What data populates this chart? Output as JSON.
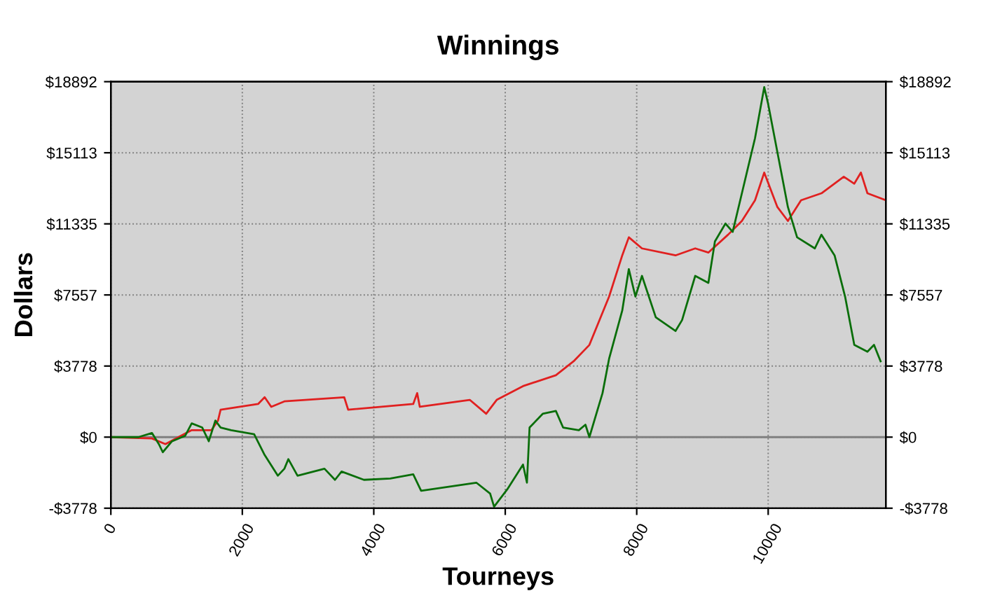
{
  "chart_data": {
    "type": "line",
    "title": "Winnings",
    "xlabel": "Tourneys",
    "ylabel": "Dollars",
    "xlim": [
      0,
      11790
    ],
    "xticks": [
      0,
      2000,
      4000,
      6000,
      8000,
      10000
    ],
    "ylim": [
      -3778,
      18892
    ],
    "yticks": [
      {
        "value": -3778,
        "label": "-$3778"
      },
      {
        "value": 0,
        "label": "$0"
      },
      {
        "value": 3778,
        "label": "$3778"
      },
      {
        "value": 7557,
        "label": "$7557"
      },
      {
        "value": 11335,
        "label": "$11335"
      },
      {
        "value": 15113,
        "label": "$15113"
      },
      {
        "value": 18892,
        "label": "$18892"
      }
    ],
    "y2lim": [
      -3778,
      18892
    ],
    "y2ticks": [
      {
        "value": -3778,
        "label": "-$3778"
      },
      {
        "value": 0,
        "label": "$0"
      },
      {
        "value": 3778,
        "label": "$3778"
      },
      {
        "value": 7557,
        "label": "$7557"
      },
      {
        "value": 11335,
        "label": "$11335"
      },
      {
        "value": 15113,
        "label": "$15113"
      },
      {
        "value": 18892,
        "label": "$18892"
      }
    ],
    "grid": true,
    "line_style": "solid",
    "ref_lines": [
      {
        "axis": "y",
        "value": 0,
        "color": "#808080"
      }
    ],
    "series": [
      {
        "color": "#e02020",
        "x": [
          0,
          625,
          830,
          1230,
          1530,
          1630,
          1670,
          2240,
          2340,
          2440,
          2640,
          3550,
          3610,
          4600,
          4660,
          4700,
          5460,
          5710,
          5870,
          6270,
          6770,
          7040,
          7280,
          7580,
          7780,
          7880,
          8080,
          8590,
          8890,
          9090,
          9390,
          9600,
          9800,
          9940,
          10140,
          10300,
          10500,
          10810,
          11150,
          11310,
          11410,
          11510,
          11790
        ],
        "values": [
          0,
          -70,
          -370,
          370,
          370,
          880,
          1460,
          1760,
          2120,
          1610,
          1900,
          2120,
          1460,
          1760,
          2340,
          1610,
          1980,
          1240,
          1980,
          2710,
          3290,
          4030,
          4900,
          7470,
          9660,
          10620,
          10030,
          9660,
          10030,
          9810,
          10760,
          11490,
          12590,
          14060,
          12230,
          11490,
          12590,
          12960,
          13840,
          13470,
          14060,
          12960,
          12590
        ]
      },
      {
        "color": "#0a6e0a",
        "x": [
          0,
          420,
          625,
          730,
          790,
          930,
          1130,
          1230,
          1390,
          1490,
          1590,
          1670,
          1830,
          2180,
          2340,
          2540,
          2640,
          2700,
          2840,
          3250,
          3410,
          3510,
          3850,
          4250,
          4600,
          4720,
          5560,
          5770,
          5830,
          6030,
          6270,
          6330,
          6370,
          6570,
          6770,
          6880,
          7120,
          7220,
          7280,
          7480,
          7580,
          7780,
          7880,
          7980,
          8080,
          8290,
          8590,
          8690,
          8890,
          9090,
          9190,
          9350,
          9460,
          9600,
          9800,
          9940,
          10000,
          10140,
          10300,
          10440,
          10710,
          10810,
          11010,
          11170,
          11310,
          11510,
          11610,
          11710
        ],
        "values": [
          0,
          0,
          220,
          -370,
          -800,
          -220,
          70,
          730,
          510,
          -220,
          880,
          510,
          370,
          150,
          -950,
          -2050,
          -1680,
          -1170,
          -2050,
          -1680,
          -2270,
          -1830,
          -2270,
          -2200,
          -1980,
          -2850,
          -2420,
          -3000,
          -3700,
          -2780,
          -1460,
          -2420,
          510,
          1240,
          1390,
          510,
          370,
          660,
          0,
          2340,
          4170,
          6730,
          8930,
          7470,
          8570,
          6370,
          5640,
          6220,
          8570,
          8200,
          10400,
          11350,
          10910,
          12960,
          15890,
          18600,
          17700,
          15150,
          12230,
          10620,
          10030,
          10760,
          9660,
          7470,
          4900,
          4540,
          4900,
          4030
        ]
      }
    ]
  }
}
